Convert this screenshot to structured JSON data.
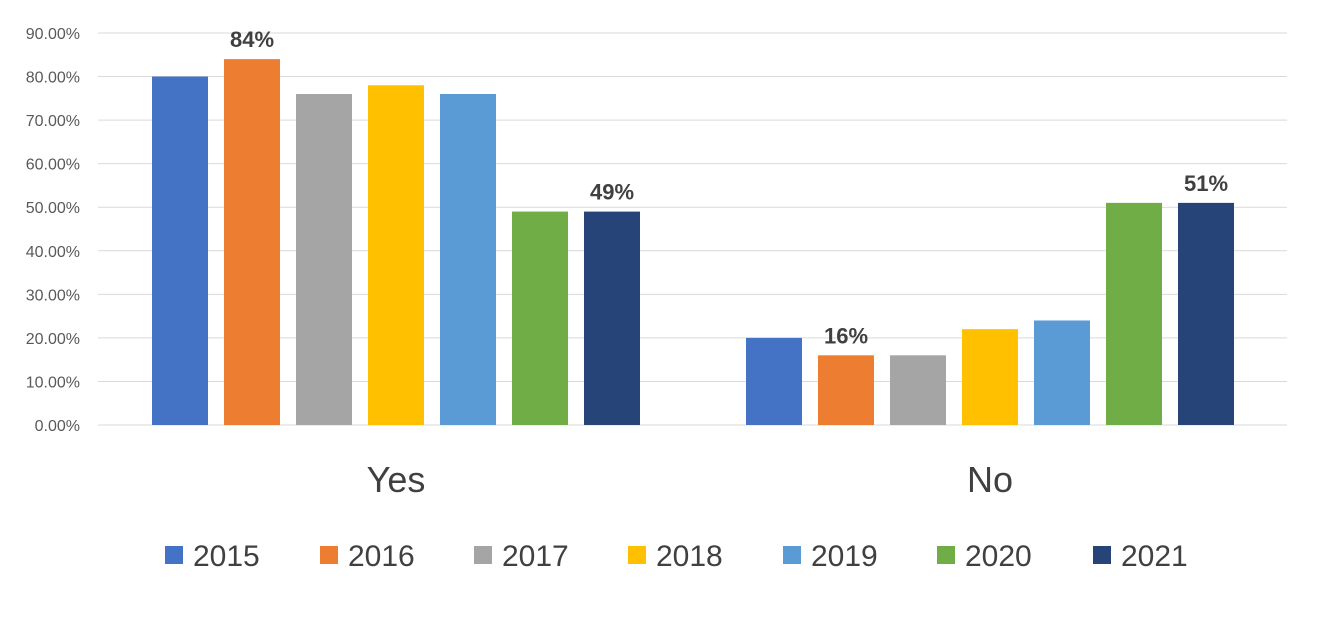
{
  "colors": {
    "2015": "#4472c4",
    "2016": "#ed7d31",
    "2017": "#a5a5a5",
    "2018": "#ffc000",
    "2019": "#5b9bd5",
    "2020": "#70ad47",
    "2021": "#264478"
  },
  "chart_data": {
    "type": "bar",
    "categories": [
      "Yes",
      "No"
    ],
    "ylim": [
      0,
      90
    ],
    "yticks": [
      0,
      10,
      20,
      30,
      40,
      50,
      60,
      70,
      80,
      90
    ],
    "ytick_labels": [
      "0.00%",
      "10.00%",
      "20.00%",
      "30.00%",
      "40.00%",
      "50.00%",
      "60.00%",
      "70.00%",
      "80.00%",
      "90.00%"
    ],
    "grid": true,
    "legend_position": "bottom",
    "series": [
      {
        "name": "2015",
        "values": [
          80,
          20
        ]
      },
      {
        "name": "2016",
        "values": [
          84,
          16
        ]
      },
      {
        "name": "2017",
        "values": [
          76,
          16
        ]
      },
      {
        "name": "2018",
        "values": [
          78,
          22
        ]
      },
      {
        "name": "2019",
        "values": [
          76,
          24
        ]
      },
      {
        "name": "2020",
        "values": [
          49,
          51
        ]
      },
      {
        "name": "2021",
        "values": [
          49,
          51
        ]
      }
    ],
    "data_labels": [
      {
        "series": "2016",
        "category": "Yes",
        "text": "84%"
      },
      {
        "series": "2021",
        "category": "Yes",
        "text": "49%"
      },
      {
        "series": "2016",
        "category": "No",
        "text": "16%"
      },
      {
        "series": "2021",
        "category": "No",
        "text": "51%"
      }
    ]
  }
}
